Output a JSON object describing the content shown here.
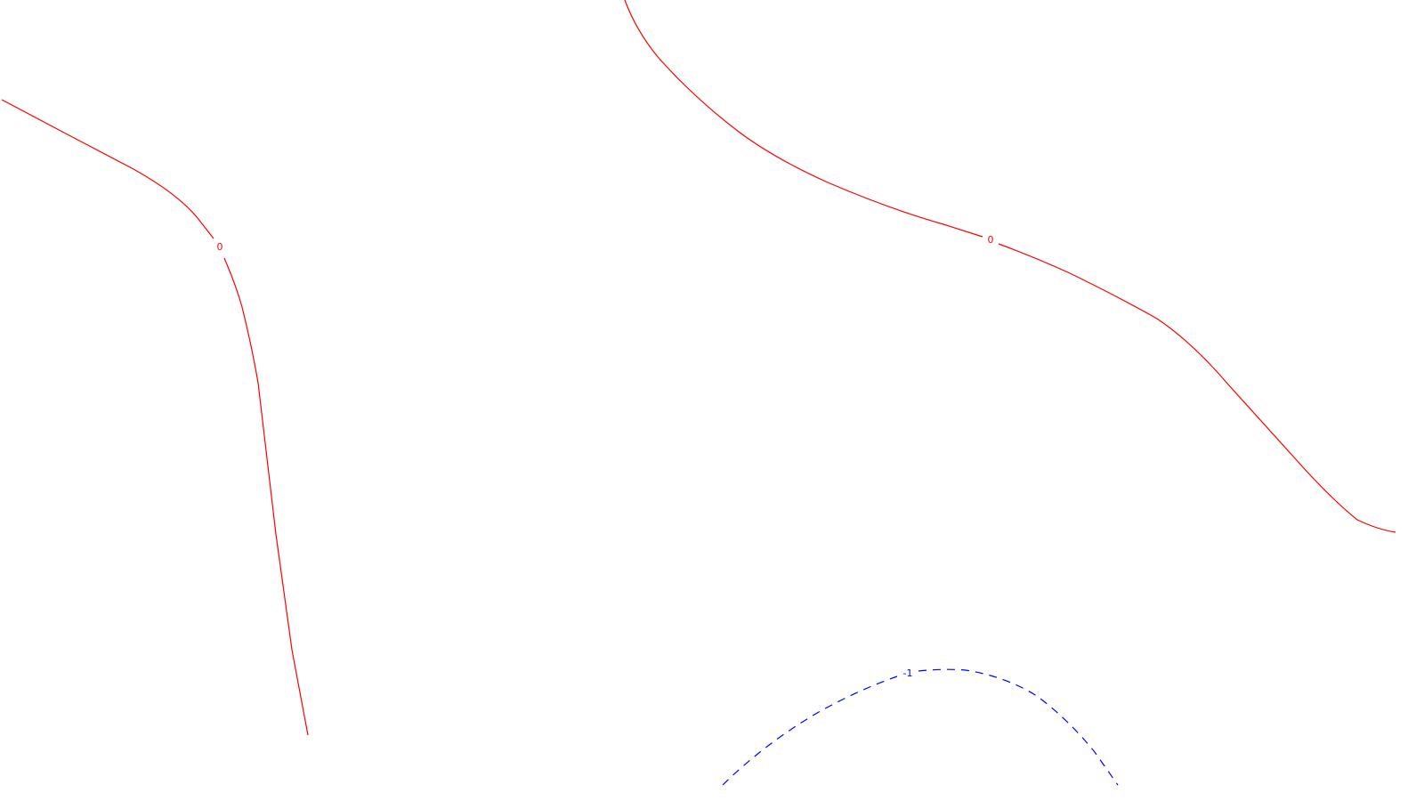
{
  "contours": [
    {
      "id": "zero-line-west",
      "value_label": "0",
      "style": "solid",
      "color": "#ff0000"
    },
    {
      "id": "zero-line-east",
      "value_label": "0",
      "style": "solid",
      "color": "#ff0000"
    },
    {
      "id": "minus-one-line-south",
      "value_label": "-1",
      "style": "dashed",
      "color": "#0000ff"
    }
  ]
}
